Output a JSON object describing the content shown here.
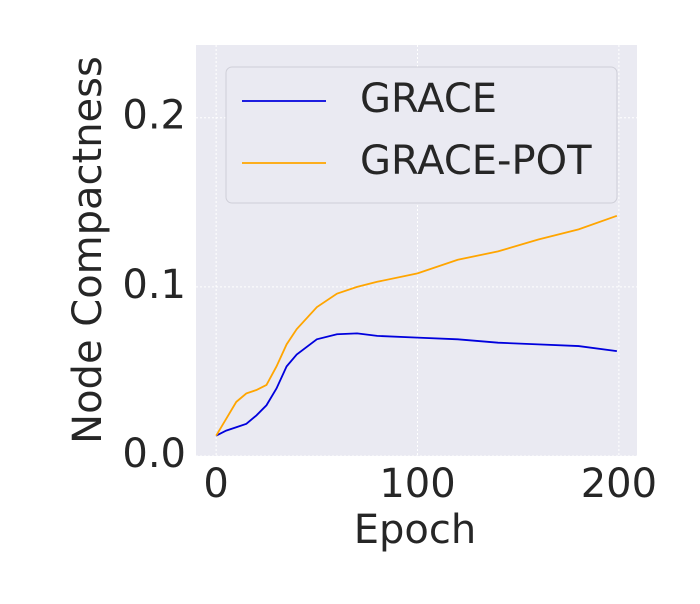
{
  "chart_data": {
    "type": "line",
    "xlabel": "Epoch",
    "ylabel": "Node Compactness",
    "x": [
      0,
      5,
      10,
      15,
      20,
      25,
      30,
      35,
      40,
      50,
      60,
      70,
      80,
      100,
      120,
      140,
      160,
      180,
      199
    ],
    "series": [
      {
        "name": "GRACE",
        "color": "#0000dd",
        "values": [
          0.012,
          0.015,
          0.017,
          0.019,
          0.024,
          0.03,
          0.04,
          0.053,
          0.06,
          0.069,
          0.072,
          0.0725,
          0.071,
          0.07,
          0.069,
          0.067,
          0.066,
          0.065,
          0.062
        ]
      },
      {
        "name": "GRACE-POT",
        "color": "#ffa500",
        "values": [
          0.012,
          0.022,
          0.032,
          0.037,
          0.039,
          0.042,
          0.053,
          0.066,
          0.075,
          0.088,
          0.096,
          0.1,
          0.103,
          0.108,
          0.116,
          0.121,
          0.128,
          0.134,
          0.142
        ]
      }
    ],
    "xlim": [
      -10,
      209
    ],
    "ylim": [
      0,
      0.243
    ],
    "xticks": [
      0,
      100,
      200
    ],
    "yticks": [
      {
        "value": 0,
        "label": "0.0"
      },
      0.1,
      0.2
    ],
    "grid": true,
    "legend": "upper left"
  }
}
